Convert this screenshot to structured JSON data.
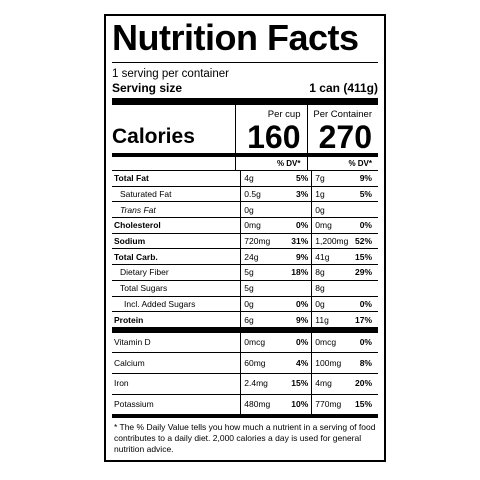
{
  "title": "Nutrition Facts",
  "servings_per_container": "1 serving per container",
  "serving_size_label": "Serving size",
  "serving_size_value": "1 can (411g)",
  "calories_label": "Calories",
  "columns": {
    "per_cup": {
      "header": "Per cup",
      "calories": "160",
      "dv": "% DV*"
    },
    "per_container": {
      "header": "Per Container",
      "calories": "270",
      "dv": "% DV*"
    }
  },
  "nutrients": [
    {
      "name": "Total Fat",
      "a1": "4g",
      "p1": "5%",
      "a2": "7g",
      "p2": "9%"
    },
    {
      "name": "Saturated Fat",
      "a1": "0.5g",
      "p1": "3%",
      "a2": "1g",
      "p2": "5%"
    },
    {
      "name": "Trans Fat",
      "a1": "0g",
      "p1": "",
      "a2": "0g",
      "p2": ""
    },
    {
      "name": "Cholesterol",
      "a1": "0mg",
      "p1": "0%",
      "a2": "0mg",
      "p2": "0%"
    },
    {
      "name": "Sodium",
      "a1": "720mg",
      "p1": "31%",
      "a2": "1,200mg",
      "p2": "52%"
    },
    {
      "name": "Total Carb.",
      "a1": "24g",
      "p1": "9%",
      "a2": "41g",
      "p2": "15%"
    },
    {
      "name": "Dietary Fiber",
      "a1": "5g",
      "p1": "18%",
      "a2": "8g",
      "p2": "29%"
    },
    {
      "name": "Total Sugars",
      "a1": "5g",
      "p1": "",
      "a2": "8g",
      "p2": ""
    },
    {
      "name": "Incl. Added Sugars",
      "a1": "0g",
      "p1": "0%",
      "a2": "0g",
      "p2": "0%"
    },
    {
      "name": "Protein",
      "a1": "6g",
      "p1": "9%",
      "a2": "11g",
      "p2": "17%"
    }
  ],
  "vitamins": [
    {
      "name": "Vitamin D",
      "a1": "0mcg",
      "p1": "0%",
      "a2": "0mcg",
      "p2": "0%"
    },
    {
      "name": "Calcium",
      "a1": "60mg",
      "p1": "4%",
      "a2": "100mg",
      "p2": "8%"
    },
    {
      "name": "Iron",
      "a1": "2.4mg",
      "p1": "15%",
      "a2": "4mg",
      "p2": "20%"
    },
    {
      "name": "Potassium",
      "a1": "480mg",
      "p1": "10%",
      "a2": "770mg",
      "p2": "15%"
    }
  ],
  "footnote": "* The % Daily Value tells you how much a nutrient in a serving of food contributes to a daily diet. 2,000 calories a day is used for general nutrition advice."
}
